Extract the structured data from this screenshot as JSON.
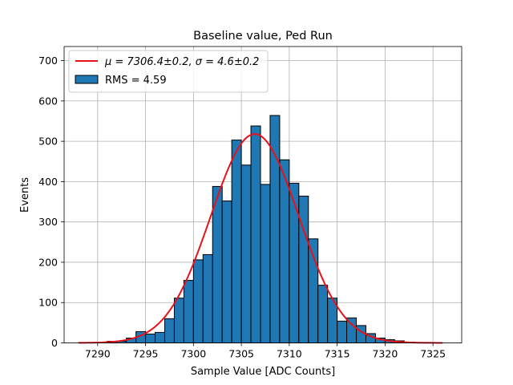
{
  "chart_data": {
    "type": "bar",
    "title": "Baseline value, Ped Run",
    "xlabel": "Sample Value [ADC Counts]",
    "ylabel": "Events",
    "xlim": [
      7286.5,
      7328
    ],
    "ylim": [
      0,
      735
    ],
    "xticks": [
      7290,
      7295,
      7300,
      7305,
      7310,
      7315,
      7320,
      7325
    ],
    "yticks": [
      0,
      100,
      200,
      300,
      400,
      500,
      600,
      700
    ],
    "grid": true,
    "legend_position": "top-left",
    "bin_width": 1,
    "histogram": {
      "name": "RMS = 4.59",
      "color": "#1f77b4",
      "edge_color": "#000000",
      "bin_starts": [
        7288,
        7289,
        7290,
        7291,
        7292,
        7293,
        7294,
        7295,
        7296,
        7297,
        7298,
        7299,
        7300,
        7301,
        7302,
        7303,
        7304,
        7305,
        7306,
        7307,
        7308,
        7309,
        7310,
        7311,
        7312,
        7313,
        7314,
        7315,
        7316,
        7317,
        7318,
        7319,
        7320,
        7321,
        7322,
        7323,
        7324,
        7325
      ],
      "values": [
        0,
        0,
        1,
        4,
        4,
        12,
        28,
        22,
        26,
        60,
        111,
        155,
        206,
        219,
        388,
        352,
        503,
        441,
        538,
        393,
        564,
        454,
        396,
        364,
        258,
        143,
        111,
        54,
        62,
        43,
        23,
        12,
        8,
        5,
        2,
        1,
        0,
        0
      ]
    },
    "fit": {
      "name": "μ = 7306.4±0.2, σ = 4.6±0.2",
      "color": "#e8111a",
      "mu": 7306.4,
      "sigma": 4.6,
      "amplitude": 518,
      "x_range": [
        7288,
        7326
      ]
    },
    "legend": [
      {
        "label_math": "μ = 7306.4±0.2, ",
        "label_sigma": "σ = 4.6±0.2",
        "series": "fit"
      },
      {
        "label": "RMS = 4.59",
        "series": "histogram"
      }
    ]
  }
}
